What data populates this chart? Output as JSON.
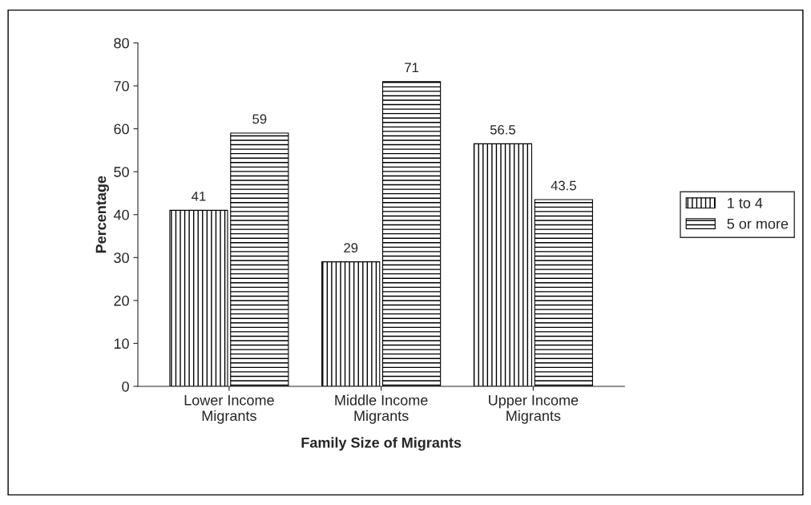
{
  "chart_data": {
    "type": "bar",
    "xlabel": "Family Size of Migrants",
    "ylabel": "Percentage",
    "categories": [
      "Lower Income\nMigrants",
      "Middle Income\nMigrants",
      "Upper Income\nMigrants"
    ],
    "series": [
      {
        "name": "1 to 4",
        "color": "#000000",
        "values": [
          41,
          29,
          56.5
        ]
      },
      {
        "name": "5 or more",
        "color": "#000000",
        "values": [
          59,
          71,
          43.5
        ]
      }
    ],
    "ylim": [
      0,
      80
    ],
    "yticks": [
      0,
      10,
      20,
      30,
      40,
      50,
      60,
      70,
      80
    ],
    "data_labels": true,
    "grid": false,
    "legend": "right"
  }
}
